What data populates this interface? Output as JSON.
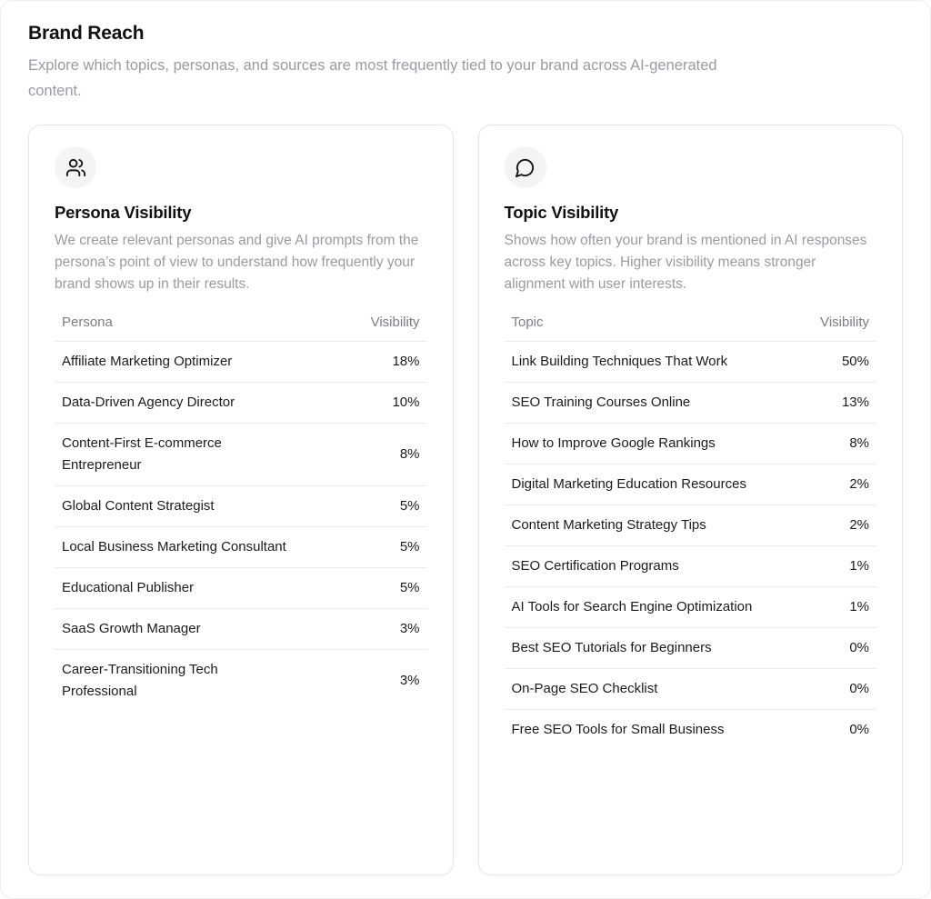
{
  "page": {
    "title": "Brand Reach",
    "subtitle": "Explore which topics, personas, and sources are most frequently tied to your brand across AI-generated content."
  },
  "colors": {
    "card_border": "#e6e6ea",
    "row_divider": "#ececef",
    "icon_circle_bg": "#f4f4f5",
    "muted_text": "#9a9aa3",
    "heading_text": "#111113"
  },
  "cards": [
    {
      "icon": "users-icon",
      "title": "Persona Visibility",
      "description": "We create relevant personas and give AI prompts from the persona’s point of view to understand how frequently your brand shows up in their results.",
      "columns": [
        "Persona",
        "Visibility"
      ],
      "rows": [
        {
          "label": "Affiliate Marketing Optimizer",
          "value": "18%"
        },
        {
          "label": "Data-Driven Agency Director",
          "value": "10%"
        },
        {
          "label": "Content-First E-commerce Entrepreneur",
          "value": "8%"
        },
        {
          "label": "Global Content Strategist",
          "value": "5%"
        },
        {
          "label": "Local Business Marketing Consultant",
          "value": "5%"
        },
        {
          "label": "Educational Publisher",
          "value": "5%"
        },
        {
          "label": "SaaS Growth Manager",
          "value": "3%"
        },
        {
          "label": "Career-Transitioning Tech Professional",
          "value": "3%"
        }
      ]
    },
    {
      "icon": "message-bubble-icon",
      "title": "Topic Visibility",
      "description": "Shows how often your brand is mentioned in AI responses across key topics. Higher visibility means stronger alignment with user interests.",
      "columns": [
        "Topic",
        "Visibility"
      ],
      "rows": [
        {
          "label": "Link Building Techniques That Work",
          "value": "50%"
        },
        {
          "label": "SEO Training Courses Online",
          "value": "13%"
        },
        {
          "label": "How to Improve Google Rankings",
          "value": "8%"
        },
        {
          "label": "Digital Marketing Education Resources",
          "value": "2%"
        },
        {
          "label": "Content Marketing Strategy Tips",
          "value": "2%"
        },
        {
          "label": "SEO Certification Programs",
          "value": "1%"
        },
        {
          "label": "AI Tools for Search Engine Optimization",
          "value": "1%"
        },
        {
          "label": "Best SEO Tutorials for Beginners",
          "value": "0%"
        },
        {
          "label": "On-Page SEO Checklist",
          "value": "0%"
        },
        {
          "label": "Free SEO Tools for Small Business",
          "value": "0%"
        }
      ]
    }
  ]
}
